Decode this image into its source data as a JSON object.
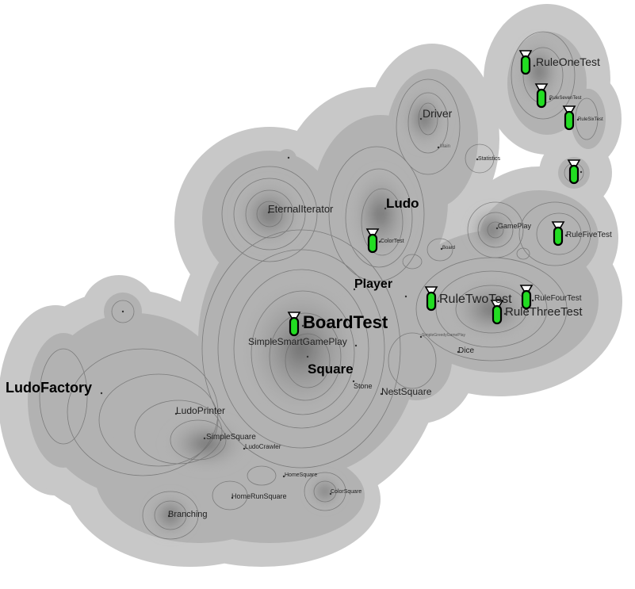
{
  "colors": {
    "background": "#ffffff",
    "outer_region": "#c8c8c8",
    "inner_region": "#b0b0b0",
    "peak": "#787878",
    "contour": "#6a6a6a",
    "test_fill": "#22dd22"
  },
  "icons": {
    "test": "test-tube-icon",
    "node": "cross-marker-icon"
  },
  "nodes": {
    "rule_one_test": "RuleOneTest",
    "rule_seven_test": "RuleSevenTest",
    "rule_six_test": "RuleSixTest",
    "driver": "Driver",
    "main": "Main",
    "statistics": "Statistics",
    "eternal_iterator": "EternalIterator",
    "ludo": "Ludo",
    "color_test": "ColorTest",
    "board": "Board",
    "game_play": "GamePlay",
    "rule_five_test": "RuleFiveTest",
    "player": "Player",
    "rule_two_test": "RuleTwoTest",
    "rule_four_test": "RuleFourTest",
    "rule_three_test": "RuleThreeTest",
    "board_test": "BoardTest",
    "simple_smart_game_play": "SimpleSmartGamePlay",
    "simple_greedy_game_play": "SimpleGreedyGamePlay",
    "dice": "Dice",
    "square": "Square",
    "stone": "Stone",
    "nest_square": "NestSquare",
    "ludo_factory": "LudoFactory",
    "ludo_printer": "LudoPrinter",
    "simple_square": "SimpleSquare",
    "ludo_crawler": "LudoCrawler",
    "home_square": "HomeSquare",
    "home_run_square": "HomeRunSquare",
    "color_square": "ColorSquare",
    "branching": "Branching"
  }
}
